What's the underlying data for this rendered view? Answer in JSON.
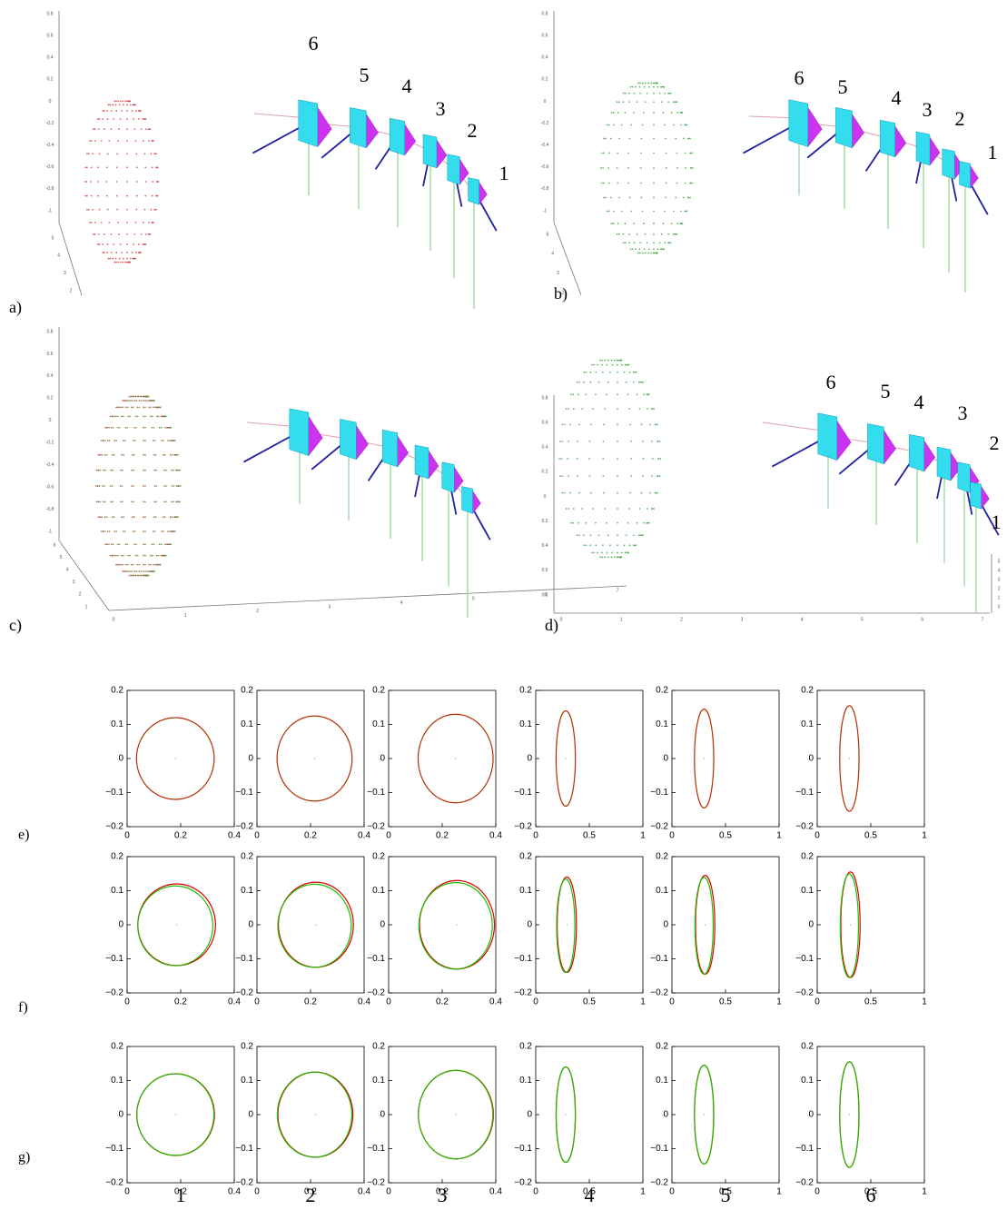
{
  "panels": [
    {
      "label": "a)",
      "cameras": [
        "6",
        "5",
        "4",
        "3",
        "2",
        "1"
      ],
      "axes": [
        {
          "labels": [
            "0.8",
            "0.6",
            "0.4",
            "0.2",
            "0",
            "-0.2",
            "-0.4",
            "-0.6",
            "-0.8",
            "-1"
          ]
        },
        {
          "labels": [
            "5",
            "4",
            "3",
            "2"
          ]
        }
      ]
    },
    {
      "label": "b)",
      "cameras": [
        "6",
        "5",
        "4",
        "3",
        "2",
        "1"
      ],
      "axes": [
        {
          "labels": [
            "0.8",
            "0.6",
            "0.4",
            "0.2",
            "0",
            "-0.2",
            "-0.4",
            "-0.6",
            "-0.8",
            "-1"
          ]
        },
        {
          "labels": [
            "6",
            "4",
            "3",
            "2"
          ]
        }
      ]
    },
    {
      "label": "c)",
      "axes": [
        {
          "labels": [
            "0.8",
            "0.6",
            "0.4",
            "0.2",
            "0",
            "-0.2",
            "-0.4",
            "-0.6",
            "-0.8",
            "-1"
          ]
        },
        {
          "labels": [
            "6",
            "5",
            "4",
            "3",
            "2",
            "1"
          ]
        },
        {
          "labels": [
            "0",
            "1",
            "2",
            "3",
            "4",
            "5",
            "6",
            "7"
          ]
        }
      ]
    },
    {
      "label": "d)",
      "cameras": [
        "6",
        "5",
        "4",
        "3",
        "2",
        "1"
      ],
      "axes": [
        {
          "labels": [
            "0.8",
            "0.6",
            "0.4",
            "0.2",
            "0",
            "0.2",
            "0.4",
            "0.6",
            "0.8"
          ]
        },
        {
          "labels": [
            "0",
            "1",
            "2",
            "3",
            "4",
            "5",
            "6",
            "7"
          ]
        },
        {
          "labels": [
            "5",
            "4",
            "3",
            "2",
            "1",
            "0"
          ]
        }
      ]
    }
  ],
  "row_labels": [
    "e)",
    "f)",
    "g)"
  ],
  "column_labels": [
    "1",
    "2",
    "3",
    "4",
    "5",
    "6"
  ],
  "chart_data": [
    {
      "type": "ellipse",
      "xlim": [
        0,
        0.4
      ],
      "ylim": [
        -0.2,
        0.2
      ],
      "xticks": [
        0,
        0.2,
        0.4
      ],
      "yticks": [
        0.2,
        0.1,
        0,
        {
          "value": -0.1,
          "label": "−0.1"
        },
        {
          "value": -0.2,
          "label": "−0.2"
        }
      ],
      "series": [
        {
          "color": "#b33000",
          "center": [
            0.18,
            0
          ],
          "radii": [
            0.145,
            0.12
          ]
        }
      ]
    },
    {
      "type": "ellipse",
      "xlim": [
        0,
        0.4
      ],
      "ylim": [
        -0.2,
        0.2
      ],
      "xticks": [
        0,
        0.2,
        0.4
      ],
      "yticks": [
        0.2,
        0.1,
        0,
        {
          "value": -0.1,
          "label": "−0.1"
        },
        {
          "value": -0.2,
          "label": "−0.2"
        }
      ],
      "series": [
        {
          "color": "#b33000",
          "center": [
            0.215,
            0
          ],
          "radii": [
            0.14,
            0.125
          ]
        }
      ]
    },
    {
      "type": "ellipse",
      "xlim": [
        0,
        0.4
      ],
      "ylim": [
        -0.2,
        0.2
      ],
      "xticks": [
        0,
        0.2,
        0.4
      ],
      "yticks": [
        0.2,
        0.1,
        0,
        {
          "value": -0.1,
          "label": "−0.1"
        },
        {
          "value": -0.2,
          "label": "−0.2"
        }
      ],
      "series": [
        {
          "color": "#b33000",
          "center": [
            0.25,
            0
          ],
          "radii": [
            0.14,
            0.13
          ]
        }
      ]
    },
    {
      "type": "ellipse",
      "xlim": [
        0,
        1
      ],
      "ylim": [
        -0.2,
        0.2
      ],
      "xticks": [
        0,
        0.5,
        1
      ],
      "yticks": [
        0.2,
        0.1,
        0,
        {
          "value": -0.1,
          "label": "−0.1"
        },
        {
          "value": -0.2,
          "label": "−0.2"
        }
      ],
      "series": [
        {
          "color": "#b33000",
          "center": [
            0.28,
            0
          ],
          "radii": [
            0.09,
            0.14
          ]
        }
      ]
    },
    {
      "type": "ellipse",
      "xlim": [
        0,
        1
      ],
      "ylim": [
        -0.2,
        0.2
      ],
      "xticks": [
        0,
        0.5,
        1
      ],
      "yticks": [
        0.2,
        0.1,
        0,
        {
          "value": -0.1,
          "label": "−0.1"
        },
        {
          "value": -0.2,
          "label": "−0.2"
        }
      ],
      "series": [
        {
          "color": "#b33000",
          "center": [
            0.3,
            0
          ],
          "radii": [
            0.09,
            0.145
          ]
        }
      ]
    },
    {
      "type": "ellipse",
      "xlim": [
        0,
        1
      ],
      "ylim": [
        -0.2,
        0.2
      ],
      "xticks": [
        0,
        0.5,
        1
      ],
      "yticks": [
        0.2,
        0.1,
        0,
        {
          "value": -0.1,
          "label": "−0.1"
        },
        {
          "value": -0.2,
          "label": "−0.2"
        }
      ],
      "series": [
        {
          "color": "#b33000",
          "center": [
            0.3,
            0
          ],
          "radii": [
            0.09,
            0.155
          ]
        }
      ]
    },
    {
      "type": "ellipse",
      "xlim": [
        0,
        0.4
      ],
      "ylim": [
        -0.2,
        0.2
      ],
      "xticks": [
        0,
        0.2,
        0.4
      ],
      "yticks": [
        0.2,
        0.1,
        0,
        {
          "value": -0.1,
          "label": "−0.1"
        },
        {
          "value": -0.2,
          "label": "−0.2"
        }
      ],
      "series": [
        {
          "color": "#dd0000",
          "center": [
            0.185,
            0
          ],
          "radii": [
            0.145,
            0.12
          ]
        },
        {
          "color": "#22bb00",
          "center": [
            0.18,
            -0.003
          ],
          "radii": [
            0.14,
            0.117
          ]
        }
      ]
    },
    {
      "type": "ellipse",
      "xlim": [
        0,
        0.4
      ],
      "ylim": [
        -0.2,
        0.2
      ],
      "xticks": [
        0,
        0.2,
        0.4
      ],
      "yticks": [
        0.2,
        0.1,
        0,
        {
          "value": -0.1,
          "label": "−0.1"
        },
        {
          "value": -0.2,
          "label": "−0.2"
        }
      ],
      "series": [
        {
          "color": "#dd0000",
          "center": [
            0.22,
            0
          ],
          "radii": [
            0.14,
            0.125
          ]
        },
        {
          "color": "#22bb00",
          "center": [
            0.215,
            -0.003
          ],
          "radii": [
            0.137,
            0.122
          ]
        }
      ]
    },
    {
      "type": "ellipse",
      "xlim": [
        0,
        0.4
      ],
      "ylim": [
        -0.2,
        0.2
      ],
      "xticks": [
        0,
        0.2,
        0.4
      ],
      "yticks": [
        0.2,
        0.1,
        0,
        {
          "value": -0.1,
          "label": "−0.1"
        },
        {
          "value": -0.2,
          "label": "−0.2"
        }
      ],
      "series": [
        {
          "color": "#dd0000",
          "center": [
            0.255,
            0
          ],
          "radii": [
            0.14,
            0.13
          ]
        },
        {
          "color": "#22bb00",
          "center": [
            0.25,
            -0.003
          ],
          "radii": [
            0.137,
            0.127
          ]
        }
      ]
    },
    {
      "type": "ellipse",
      "xlim": [
        0,
        1
      ],
      "ylim": [
        -0.2,
        0.2
      ],
      "xticks": [
        0,
        0.5,
        1
      ],
      "yticks": [
        0.2,
        0.1,
        0,
        {
          "value": -0.1,
          "label": "−0.1"
        },
        {
          "value": -0.2,
          "label": "−0.2"
        }
      ],
      "series": [
        {
          "color": "#dd0000",
          "center": [
            0.29,
            0
          ],
          "radii": [
            0.09,
            0.14
          ]
        },
        {
          "color": "#22bb00",
          "center": [
            0.28,
            -0.003
          ],
          "radii": [
            0.085,
            0.137
          ]
        }
      ]
    },
    {
      "type": "ellipse",
      "xlim": [
        0,
        1
      ],
      "ylim": [
        -0.2,
        0.2
      ],
      "xticks": [
        0,
        0.5,
        1
      ],
      "yticks": [
        0.2,
        0.1,
        0,
        {
          "value": -0.1,
          "label": "−0.1"
        },
        {
          "value": -0.2,
          "label": "−0.2"
        }
      ],
      "series": [
        {
          "color": "#dd0000",
          "center": [
            0.31,
            0
          ],
          "radii": [
            0.09,
            0.145
          ]
        },
        {
          "color": "#22bb00",
          "center": [
            0.3,
            -0.003
          ],
          "radii": [
            0.085,
            0.142
          ]
        }
      ]
    },
    {
      "type": "ellipse",
      "xlim": [
        0,
        1
      ],
      "ylim": [
        -0.2,
        0.2
      ],
      "xticks": [
        0,
        0.5,
        1
      ],
      "yticks": [
        0.2,
        0.1,
        0,
        {
          "value": -0.1,
          "label": "−0.1"
        },
        {
          "value": -0.2,
          "label": "−0.2"
        }
      ],
      "series": [
        {
          "color": "#dd0000",
          "center": [
            0.31,
            0
          ],
          "radii": [
            0.09,
            0.155
          ]
        },
        {
          "color": "#22bb00",
          "center": [
            0.3,
            -0.003
          ],
          "radii": [
            0.085,
            0.152
          ]
        }
      ]
    },
    {
      "type": "ellipse",
      "xlim": [
        0,
        0.4
      ],
      "ylim": [
        -0.2,
        0.2
      ],
      "xticks": [
        0,
        0.2,
        0.4
      ],
      "yticks": [
        0.2,
        0.1,
        0,
        {
          "value": -0.1,
          "label": "−0.1"
        },
        {
          "value": -0.2,
          "label": "−0.2"
        }
      ],
      "series": [
        {
          "color": "#dd0000",
          "center": [
            0.181,
            0
          ],
          "radii": [
            0.145,
            0.12
          ]
        },
        {
          "color": "#22bb00",
          "center": [
            0.18,
            0
          ],
          "radii": [
            0.144,
            0.12
          ]
        }
      ]
    },
    {
      "type": "ellipse",
      "xlim": [
        0,
        0.4
      ],
      "ylim": [
        -0.2,
        0.2
      ],
      "xticks": [
        0,
        0.2,
        0.4
      ],
      "yticks": [
        0.2,
        0.1,
        0,
        {
          "value": -0.1,
          "label": "−0.1"
        },
        {
          "value": -0.2,
          "label": "−0.2"
        }
      ],
      "series": [
        {
          "color": "#dd0000",
          "center": [
            0.218,
            0
          ],
          "radii": [
            0.14,
            0.125
          ]
        },
        {
          "color": "#22bb00",
          "center": [
            0.215,
            0
          ],
          "radii": [
            0.139,
            0.125
          ]
        }
      ]
    },
    {
      "type": "ellipse",
      "xlim": [
        0,
        0.4
      ],
      "ylim": [
        -0.2,
        0.2
      ],
      "xticks": [
        0,
        0.2,
        0.4
      ],
      "yticks": [
        0.2,
        0.1,
        0,
        {
          "value": -0.1,
          "label": "−0.1"
        },
        {
          "value": -0.2,
          "label": "−0.2"
        }
      ],
      "series": [
        {
          "color": "#dd0000",
          "center": [
            0.251,
            0
          ],
          "radii": [
            0.14,
            0.13
          ]
        },
        {
          "color": "#22bb00",
          "center": [
            0.25,
            0
          ],
          "radii": [
            0.139,
            0.13
          ]
        }
      ]
    },
    {
      "type": "ellipse",
      "xlim": [
        0,
        1
      ],
      "ylim": [
        -0.2,
        0.2
      ],
      "xticks": [
        0,
        0.5,
        1
      ],
      "yticks": [
        0.2,
        0.1,
        0,
        {
          "value": -0.1,
          "label": "−0.1"
        },
        {
          "value": -0.2,
          "label": "−0.2"
        }
      ],
      "series": [
        {
          "color": "#dd0000",
          "center": [
            0.28,
            0
          ],
          "radii": [
            0.09,
            0.14
          ]
        },
        {
          "color": "#22bb00",
          "center": [
            0.28,
            0
          ],
          "radii": [
            0.089,
            0.14
          ]
        }
      ]
    },
    {
      "type": "ellipse",
      "xlim": [
        0,
        1
      ],
      "ylim": [
        -0.2,
        0.2
      ],
      "xticks": [
        0,
        0.5,
        1
      ],
      "yticks": [
        0.2,
        0.1,
        0,
        {
          "value": -0.1,
          "label": "−0.1"
        },
        {
          "value": -0.2,
          "label": "−0.2"
        }
      ],
      "series": [
        {
          "color": "#dd0000",
          "center": [
            0.3,
            0
          ],
          "radii": [
            0.09,
            0.145
          ]
        },
        {
          "color": "#22bb00",
          "center": [
            0.3,
            0
          ],
          "radii": [
            0.089,
            0.145
          ]
        }
      ]
    },
    {
      "type": "ellipse",
      "xlim": [
        0,
        1
      ],
      "ylim": [
        -0.2,
        0.2
      ],
      "xticks": [
        0,
        0.5,
        1
      ],
      "yticks": [
        0.2,
        0.1,
        0,
        {
          "value": -0.1,
          "label": "−0.1"
        },
        {
          "value": -0.2,
          "label": "−0.2"
        }
      ],
      "series": [
        {
          "color": "#dd0000",
          "center": [
            0.3,
            0
          ],
          "radii": [
            0.09,
            0.155
          ]
        },
        {
          "color": "#22bb00",
          "center": [
            0.3,
            0
          ],
          "radii": [
            0.089,
            0.155
          ]
        }
      ]
    }
  ]
}
